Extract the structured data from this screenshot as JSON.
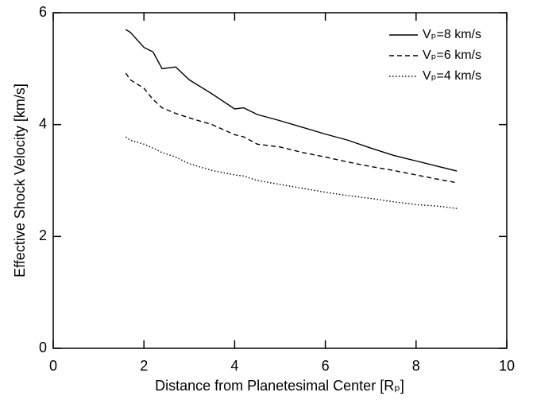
{
  "chart_data": {
    "type": "line",
    "xlabel": "Distance from Planetesimal Center [Rₚ]",
    "ylabel": "Effective Shock Velocity [km/s]",
    "x": [
      1.6,
      1.7,
      2,
      2.2,
      2.4,
      2.7,
      3,
      3.5,
      4,
      4.2,
      4.5,
      5,
      5.5,
      6,
      6.5,
      7,
      7.5,
      8,
      8.5,
      8.9
    ],
    "series": [
      {
        "name": "Vₚ=8 km/s",
        "color": "#000000",
        "line_style": "solid",
        "values": [
          5.7,
          5.65,
          5.38,
          5.3,
          5.0,
          5.03,
          4.8,
          4.55,
          4.28,
          4.3,
          4.18,
          4.07,
          3.95,
          3.83,
          3.72,
          3.58,
          3.45,
          3.35,
          3.25,
          3.17
        ]
      },
      {
        "name": "Vₚ=6 km/s",
        "color": "#000000",
        "line_style": "dashed",
        "values": [
          4.92,
          4.8,
          4.65,
          4.45,
          4.3,
          4.2,
          4.12,
          4.0,
          3.82,
          3.78,
          3.65,
          3.6,
          3.5,
          3.42,
          3.33,
          3.25,
          3.18,
          3.1,
          3.02,
          2.96
        ]
      },
      {
        "name": "Vₚ=4 km/s",
        "color": "#000000",
        "line_style": "dotted",
        "values": [
          3.78,
          3.72,
          3.65,
          3.58,
          3.5,
          3.42,
          3.3,
          3.18,
          3.1,
          3.08,
          3.0,
          2.93,
          2.86,
          2.79,
          2.73,
          2.68,
          2.62,
          2.57,
          2.54,
          2.5
        ]
      }
    ],
    "xlim": [
      0,
      10
    ],
    "xticks": [
      0,
      2,
      4,
      6,
      8,
      10
    ],
    "ylim": [
      0,
      6
    ],
    "yticks": [
      0,
      2,
      4,
      6
    ],
    "legend": "upper-right",
    "grid": false
  }
}
